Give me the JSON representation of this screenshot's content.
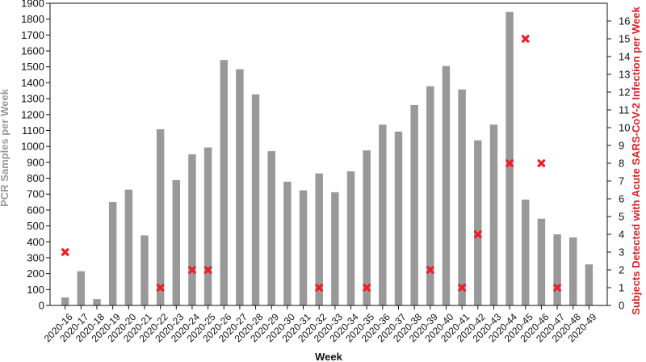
{
  "chart_data": {
    "type": "bar",
    "xlabel": "Week",
    "ylabel_left": "PCR Samples per Week",
    "ylabel_right": "Subjects Detected with Acute SARS-CoV-2 Infection per Week",
    "categories": [
      "2020-16",
      "2020-17",
      "2020-18",
      "2020-19",
      "2020-20",
      "2020-21",
      "2020-22",
      "2020-23",
      "2020-24",
      "2020-25",
      "2020-26",
      "2020-27",
      "2020-28",
      "2020-29",
      "2020-30",
      "2020-31",
      "2020-32",
      "2020-33",
      "2020-34",
      "2020-35",
      "2020-36",
      "2020-37",
      "2020-38",
      "2020-39",
      "2020-40",
      "2020-41",
      "2020-42",
      "2020-43",
      "2020-44",
      "2020-45",
      "2020-46",
      "2020-47",
      "2020-48",
      "2020-49"
    ],
    "series": [
      {
        "values": [
          50,
          215,
          40,
          650,
          728,
          440,
          1108,
          788,
          950,
          993,
          1543,
          1485,
          1327,
          970,
          778,
          724,
          830,
          712,
          843,
          975,
          1137,
          1093,
          1260,
          1378,
          1505,
          1358,
          1038,
          1137,
          1845,
          665,
          545,
          447,
          428,
          258
        ]
      },
      {
        "values": [
          3,
          null,
          null,
          null,
          null,
          null,
          1,
          null,
          2,
          2,
          null,
          null,
          null,
          null,
          null,
          null,
          1,
          null,
          null,
          1,
          null,
          null,
          null,
          2,
          null,
          1,
          4,
          null,
          8,
          15,
          8,
          1,
          null,
          null
        ]
      }
    ],
    "ylim_left": [
      0,
      1900
    ],
    "ylim_right": [
      0,
      17
    ],
    "yticks_left": [
      0,
      100,
      200,
      300,
      400,
      500,
      600,
      700,
      800,
      900,
      1000,
      1100,
      1200,
      1300,
      1400,
      1500,
      1600,
      1700,
      1800,
      1900
    ],
    "yticks_right": [
      0,
      1,
      2,
      3,
      4,
      5,
      6,
      7,
      8,
      9,
      10,
      11,
      12,
      13,
      14,
      15,
      16
    ],
    "colors": {
      "bars": "#999999",
      "markers": "#ee1c25",
      "left_label": "#999999",
      "right_label": "#dd1f26"
    }
  }
}
